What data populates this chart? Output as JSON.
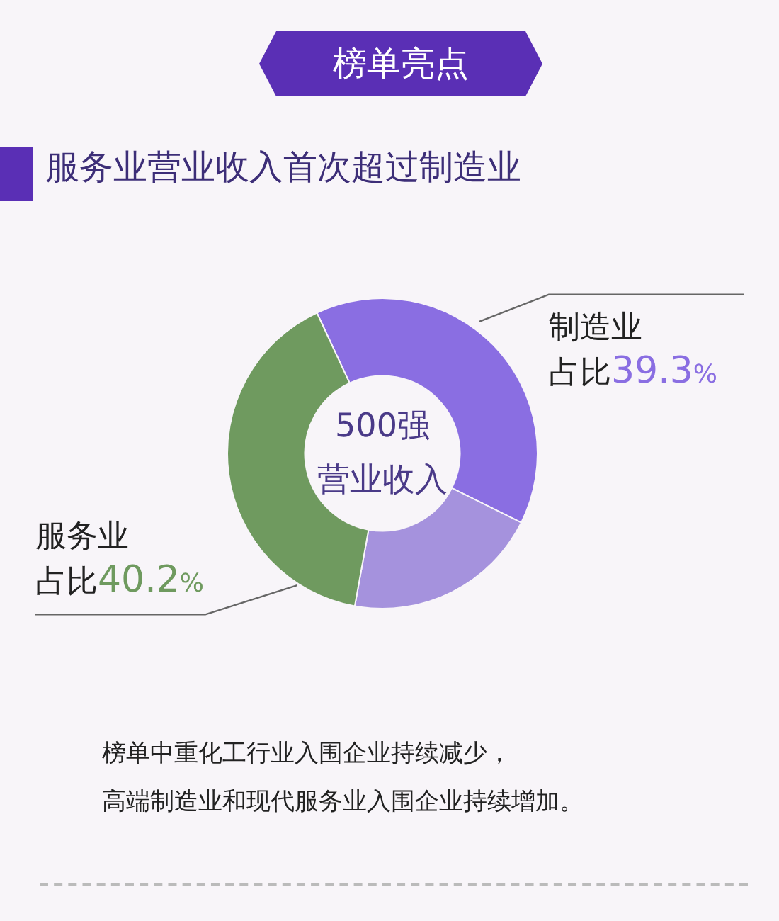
{
  "chart_data": {
    "type": "donut",
    "title": "榜单亮点",
    "subtitle": "服务业营业收入首次超过制造业",
    "categories": [
      "制造业",
      null,
      "服务业"
    ],
    "values": [
      39.3,
      20.5,
      40.2
    ],
    "colors": [
      "#8a6ee2",
      "#a592dd",
      "#6f9a5f"
    ],
    "value_labels": [
      "占比39.3%",
      null,
      "占比40.2%"
    ],
    "annotations": [
      "500强",
      "营业收入",
      "榜单中重化工行业入围企业持续减少，",
      "高端制造业和现代服务业入围企业持续增加。"
    ],
    "legend": false
  }
}
